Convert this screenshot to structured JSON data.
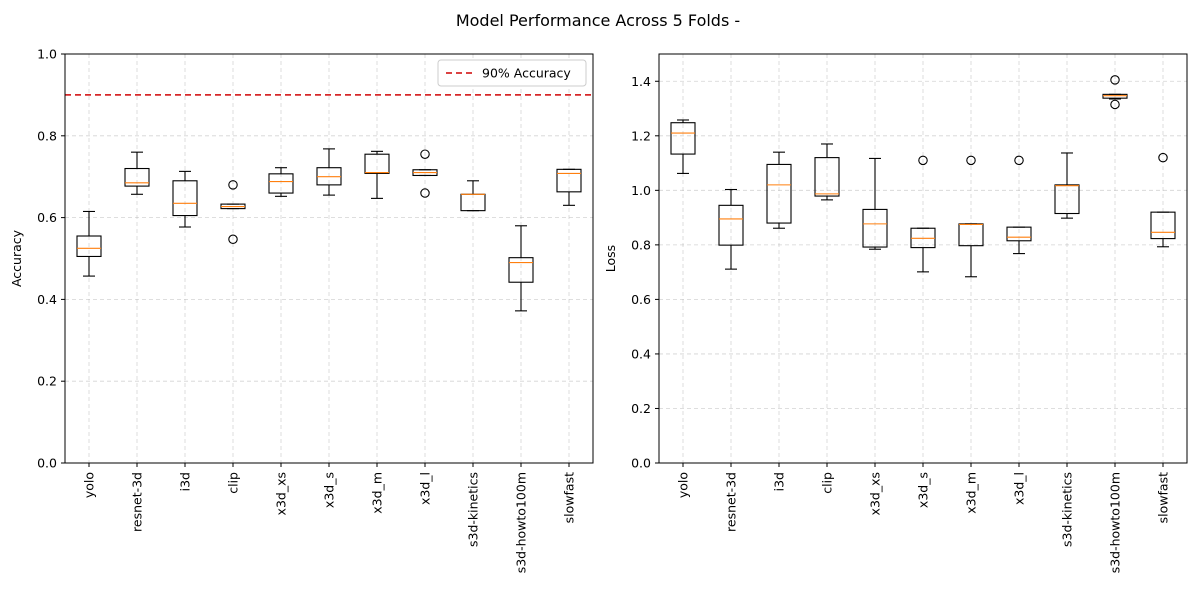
{
  "suptitle": "Model Performance Across 5 Folds -",
  "chart_data": [
    {
      "type": "box",
      "ylabel": "Accuracy",
      "ylim": [
        0.0,
        1.0
      ],
      "yticks": [
        "0.0",
        "0.2",
        "0.4",
        "0.6",
        "0.8",
        "1.0"
      ],
      "grid": true,
      "categories": [
        "yolo",
        "resnet-3d",
        "i3d",
        "clip",
        "x3d_xs",
        "x3d_s",
        "x3d_m",
        "x3d_l",
        "s3d-kinetics",
        "s3d-howto100m",
        "slowfast"
      ],
      "boxes": [
        {
          "whislo": 0.457,
          "q1": 0.505,
          "med": 0.525,
          "q3": 0.555,
          "whishi": 0.615,
          "fliers": []
        },
        {
          "whislo": 0.657,
          "q1": 0.677,
          "med": 0.685,
          "q3": 0.72,
          "whishi": 0.76,
          "fliers": []
        },
        {
          "whislo": 0.577,
          "q1": 0.605,
          "med": 0.635,
          "q3": 0.69,
          "whishi": 0.713,
          "fliers": []
        },
        {
          "whislo": 0.622,
          "q1": 0.622,
          "med": 0.627,
          "q3": 0.633,
          "whishi": 0.633,
          "fliers": [
            0.547,
            0.68
          ]
        },
        {
          "whislo": 0.652,
          "q1": 0.66,
          "med": 0.688,
          "q3": 0.707,
          "whishi": 0.722,
          "fliers": []
        },
        {
          "whislo": 0.655,
          "q1": 0.68,
          "med": 0.7,
          "q3": 0.722,
          "whishi": 0.768,
          "fliers": []
        },
        {
          "whislo": 0.647,
          "q1": 0.708,
          "med": 0.71,
          "q3": 0.755,
          "whishi": 0.762,
          "fliers": []
        },
        {
          "whislo": 0.703,
          "q1": 0.703,
          "med": 0.71,
          "q3": 0.717,
          "whishi": 0.717,
          "fliers": [
            0.66,
            0.755
          ]
        },
        {
          "whislo": 0.617,
          "q1": 0.617,
          "med": 0.657,
          "q3": 0.657,
          "whishi": 0.69,
          "fliers": []
        },
        {
          "whislo": 0.372,
          "q1": 0.442,
          "med": 0.49,
          "q3": 0.502,
          "whishi": 0.58,
          "fliers": []
        },
        {
          "whislo": 0.63,
          "q1": 0.663,
          "med": 0.708,
          "q3": 0.718,
          "whishi": 0.718,
          "fliers": []
        }
      ],
      "reference_line": {
        "value": 0.9,
        "label": "90% Accuracy",
        "color": "#d62728"
      },
      "legend_position": "top-right"
    },
    {
      "type": "box",
      "ylabel": "Loss",
      "ylim": [
        0.0,
        1.5
      ],
      "yticks": [
        "0.0",
        "0.2",
        "0.4",
        "0.6",
        "0.8",
        "1.0",
        "1.2",
        "1.4"
      ],
      "grid": true,
      "categories": [
        "yolo",
        "resnet-3d",
        "i3d",
        "clip",
        "x3d_xs",
        "x3d_s",
        "x3d_m",
        "x3d_l",
        "s3d-kinetics",
        "s3d-howto100m",
        "slowfast"
      ],
      "boxes": [
        {
          "whislo": 1.062,
          "q1": 1.133,
          "med": 1.21,
          "q3": 1.248,
          "whishi": 1.258,
          "fliers": []
        },
        {
          "whislo": 0.711,
          "q1": 0.799,
          "med": 0.895,
          "q3": 0.945,
          "whishi": 1.003,
          "fliers": []
        },
        {
          "whislo": 0.861,
          "q1": 0.88,
          "med": 1.02,
          "q3": 1.095,
          "whishi": 1.14,
          "fliers": []
        },
        {
          "whislo": 0.965,
          "q1": 0.979,
          "med": 0.987,
          "q3": 1.12,
          "whishi": 1.17,
          "fliers": []
        },
        {
          "whislo": 0.784,
          "q1": 0.792,
          "med": 0.877,
          "q3": 0.93,
          "whishi": 1.117,
          "fliers": []
        },
        {
          "whislo": 0.701,
          "q1": 0.79,
          "med": 0.824,
          "q3": 0.861,
          "whishi": 0.861,
          "fliers": [
            1.11
          ]
        },
        {
          "whislo": 0.683,
          "q1": 0.797,
          "med": 0.875,
          "q3": 0.877,
          "whishi": 0.877,
          "fliers": [
            1.11
          ]
        },
        {
          "whislo": 0.768,
          "q1": 0.815,
          "med": 0.828,
          "q3": 0.865,
          "whishi": 0.865,
          "fliers": [
            1.11
          ]
        },
        {
          "whislo": 0.898,
          "q1": 0.915,
          "med": 1.017,
          "q3": 1.02,
          "whishi": 1.137,
          "fliers": []
        },
        {
          "whislo": 1.335,
          "q1": 1.338,
          "med": 1.347,
          "q3": 1.352,
          "whishi": 1.352,
          "fliers": [
            1.315,
            1.405
          ]
        },
        {
          "whislo": 0.793,
          "q1": 0.823,
          "med": 0.846,
          "q3": 0.92,
          "whishi": 0.92,
          "fliers": [
            1.12
          ]
        }
      ],
      "legend_position": "none"
    }
  ]
}
